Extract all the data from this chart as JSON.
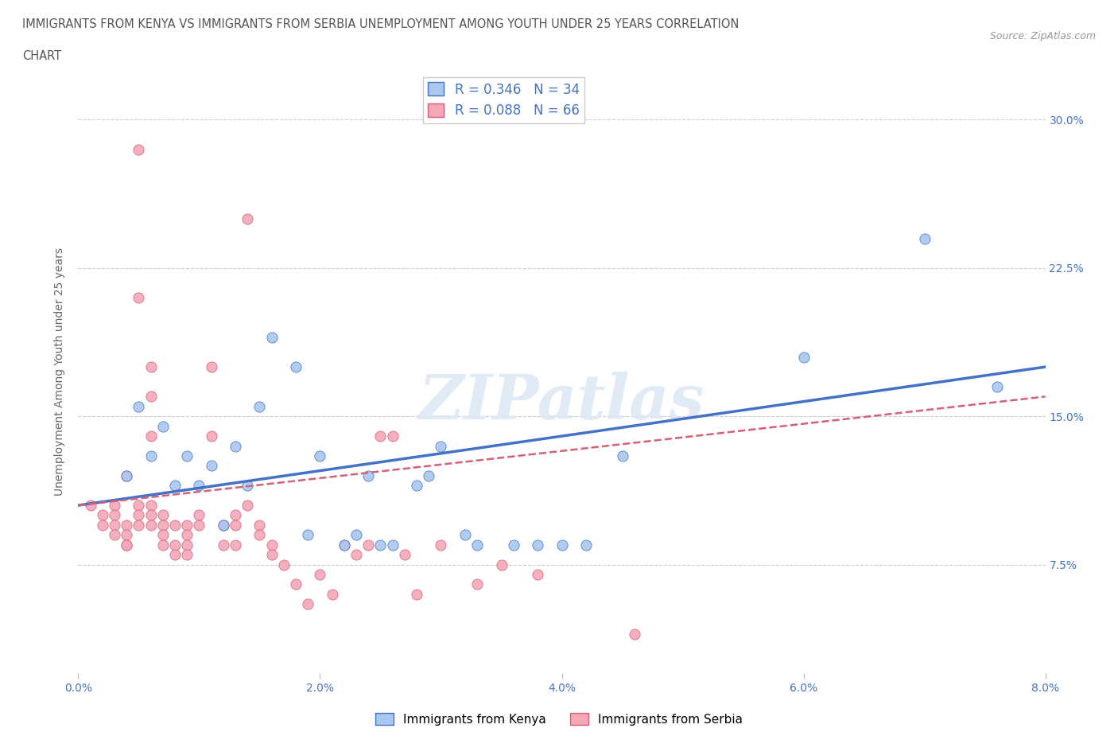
{
  "title_line1": "IMMIGRANTS FROM KENYA VS IMMIGRANTS FROM SERBIA UNEMPLOYMENT AMONG YOUTH UNDER 25 YEARS CORRELATION",
  "title_line2": "CHART",
  "source_text": "Source: ZipAtlas.com",
  "ylabel": "Unemployment Among Youth under 25 years",
  "x_tick_labels": [
    "0.0%",
    "2.0%",
    "4.0%",
    "6.0%",
    "8.0%"
  ],
  "y_tick_labels": [
    "7.5%",
    "15.0%",
    "22.5%",
    "30.0%"
  ],
  "x_ticks": [
    0.0,
    0.02,
    0.04,
    0.06,
    0.08
  ],
  "y_ticks": [
    0.075,
    0.15,
    0.225,
    0.3
  ],
  "x_min": 0.0,
  "x_max": 0.08,
  "y_min": 0.02,
  "y_max": 0.325,
  "kenya_color": "#a8c8f0",
  "kenya_color_line": "#4472c4",
  "serbia_color": "#f4a8b8",
  "serbia_color_line": "#d4607a",
  "kenya_R": 0.346,
  "kenya_N": 34,
  "serbia_R": 0.088,
  "serbia_N": 66,
  "watermark": "ZIPatlas",
  "legend_label_kenya": "Immigrants from Kenya",
  "legend_label_serbia": "Immigrants from Serbia",
  "kenya_scatter": [
    [
      0.004,
      0.12
    ],
    [
      0.005,
      0.155
    ],
    [
      0.006,
      0.13
    ],
    [
      0.007,
      0.145
    ],
    [
      0.008,
      0.115
    ],
    [
      0.009,
      0.13
    ],
    [
      0.01,
      0.115
    ],
    [
      0.011,
      0.125
    ],
    [
      0.012,
      0.095
    ],
    [
      0.013,
      0.135
    ],
    [
      0.014,
      0.115
    ],
    [
      0.015,
      0.155
    ],
    [
      0.016,
      0.19
    ],
    [
      0.018,
      0.175
    ],
    [
      0.019,
      0.09
    ],
    [
      0.02,
      0.13
    ],
    [
      0.022,
      0.085
    ],
    [
      0.023,
      0.09
    ],
    [
      0.024,
      0.12
    ],
    [
      0.025,
      0.085
    ],
    [
      0.026,
      0.085
    ],
    [
      0.028,
      0.115
    ],
    [
      0.029,
      0.12
    ],
    [
      0.03,
      0.135
    ],
    [
      0.032,
      0.09
    ],
    [
      0.033,
      0.085
    ],
    [
      0.036,
      0.085
    ],
    [
      0.038,
      0.085
    ],
    [
      0.04,
      0.085
    ],
    [
      0.042,
      0.085
    ],
    [
      0.045,
      0.13
    ],
    [
      0.06,
      0.18
    ],
    [
      0.07,
      0.24
    ],
    [
      0.076,
      0.165
    ]
  ],
  "serbia_scatter": [
    [
      0.001,
      0.105
    ],
    [
      0.002,
      0.1
    ],
    [
      0.002,
      0.095
    ],
    [
      0.003,
      0.105
    ],
    [
      0.003,
      0.1
    ],
    [
      0.003,
      0.095
    ],
    [
      0.003,
      0.09
    ],
    [
      0.004,
      0.095
    ],
    [
      0.004,
      0.09
    ],
    [
      0.004,
      0.085
    ],
    [
      0.004,
      0.085
    ],
    [
      0.004,
      0.12
    ],
    [
      0.005,
      0.105
    ],
    [
      0.005,
      0.1
    ],
    [
      0.005,
      0.095
    ],
    [
      0.005,
      0.285
    ],
    [
      0.005,
      0.21
    ],
    [
      0.006,
      0.175
    ],
    [
      0.006,
      0.16
    ],
    [
      0.006,
      0.14
    ],
    [
      0.006,
      0.105
    ],
    [
      0.006,
      0.1
    ],
    [
      0.006,
      0.095
    ],
    [
      0.007,
      0.1
    ],
    [
      0.007,
      0.095
    ],
    [
      0.007,
      0.09
    ],
    [
      0.007,
      0.085
    ],
    [
      0.008,
      0.095
    ],
    [
      0.008,
      0.085
    ],
    [
      0.008,
      0.08
    ],
    [
      0.009,
      0.095
    ],
    [
      0.009,
      0.09
    ],
    [
      0.009,
      0.085
    ],
    [
      0.009,
      0.08
    ],
    [
      0.01,
      0.1
    ],
    [
      0.01,
      0.095
    ],
    [
      0.011,
      0.175
    ],
    [
      0.011,
      0.14
    ],
    [
      0.012,
      0.095
    ],
    [
      0.012,
      0.085
    ],
    [
      0.013,
      0.1
    ],
    [
      0.013,
      0.095
    ],
    [
      0.013,
      0.085
    ],
    [
      0.014,
      0.25
    ],
    [
      0.014,
      0.105
    ],
    [
      0.015,
      0.095
    ],
    [
      0.015,
      0.09
    ],
    [
      0.016,
      0.085
    ],
    [
      0.016,
      0.08
    ],
    [
      0.017,
      0.075
    ],
    [
      0.018,
      0.065
    ],
    [
      0.019,
      0.055
    ],
    [
      0.02,
      0.07
    ],
    [
      0.021,
      0.06
    ],
    [
      0.022,
      0.085
    ],
    [
      0.023,
      0.08
    ],
    [
      0.024,
      0.085
    ],
    [
      0.025,
      0.14
    ],
    [
      0.026,
      0.14
    ],
    [
      0.027,
      0.08
    ],
    [
      0.028,
      0.06
    ],
    [
      0.03,
      0.085
    ],
    [
      0.033,
      0.065
    ],
    [
      0.035,
      0.075
    ],
    [
      0.038,
      0.07
    ],
    [
      0.046,
      0.04
    ]
  ],
  "kenya_line_x": [
    0.0,
    0.08
  ],
  "kenya_line_y": [
    0.105,
    0.175
  ],
  "serbia_line_x": [
    0.0,
    0.08
  ],
  "serbia_line_y": [
    0.105,
    0.16
  ]
}
